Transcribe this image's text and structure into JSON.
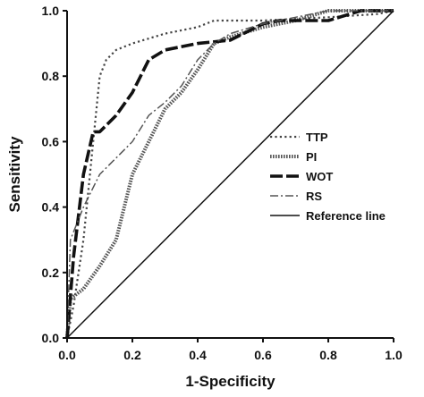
{
  "chart_data": {
    "type": "line",
    "xlabel": "1-Specificity",
    "ylabel": "Sensitivity",
    "xlim": [
      0.0,
      1.0
    ],
    "ylim": [
      0.0,
      1.0
    ],
    "xticks": [
      "0.0",
      "0.2",
      "0.4",
      "0.6",
      "0.8",
      "1.0"
    ],
    "yticks": [
      "0.0",
      "0.2",
      "0.4",
      "0.6",
      "0.8",
      "1.0"
    ],
    "grid": false,
    "legend_position": "center-right",
    "series": [
      {
        "name": "TTP",
        "style": "dotted",
        "color": "#444444",
        "x": [
          0.0,
          0.02,
          0.05,
          0.08,
          0.1,
          0.12,
          0.15,
          0.2,
          0.3,
          0.4,
          0.45,
          0.6,
          0.8,
          0.95,
          1.0
        ],
        "y": [
          0.0,
          0.1,
          0.3,
          0.6,
          0.8,
          0.85,
          0.88,
          0.9,
          0.93,
          0.95,
          0.97,
          0.97,
          0.98,
          0.99,
          1.0
        ]
      },
      {
        "name": "PI",
        "style": "dense-dotted",
        "color": "#555555",
        "x": [
          0.0,
          0.01,
          0.05,
          0.1,
          0.15,
          0.2,
          0.25,
          0.3,
          0.35,
          0.4,
          0.45,
          0.5,
          0.6,
          0.7,
          0.8,
          1.0
        ],
        "y": [
          0.0,
          0.12,
          0.15,
          0.22,
          0.3,
          0.5,
          0.6,
          0.7,
          0.75,
          0.82,
          0.9,
          0.92,
          0.95,
          0.97,
          1.0,
          1.0
        ]
      },
      {
        "name": "WOT",
        "style": "long-dash",
        "color": "#111111",
        "x": [
          0.0,
          0.02,
          0.05,
          0.08,
          0.1,
          0.15,
          0.2,
          0.25,
          0.3,
          0.4,
          0.5,
          0.6,
          0.65,
          0.7,
          0.8,
          0.9,
          1.0
        ],
        "y": [
          0.0,
          0.25,
          0.5,
          0.63,
          0.63,
          0.68,
          0.75,
          0.85,
          0.88,
          0.9,
          0.91,
          0.96,
          0.97,
          0.97,
          0.97,
          1.0,
          1.0
        ]
      },
      {
        "name": "RS",
        "style": "dash-dot",
        "color": "#555555",
        "x": [
          0.0,
          0.01,
          0.05,
          0.1,
          0.15,
          0.2,
          0.25,
          0.3,
          0.35,
          0.4,
          0.45,
          0.5,
          0.6,
          0.7,
          0.8,
          1.0
        ],
        "y": [
          0.0,
          0.3,
          0.4,
          0.5,
          0.55,
          0.6,
          0.68,
          0.72,
          0.77,
          0.85,
          0.9,
          0.93,
          0.96,
          0.98,
          1.0,
          1.0
        ]
      },
      {
        "name": "Reference line",
        "style": "solid",
        "color": "#111111",
        "x": [
          0.0,
          1.0
        ],
        "y": [
          0.0,
          1.0
        ]
      }
    ]
  }
}
